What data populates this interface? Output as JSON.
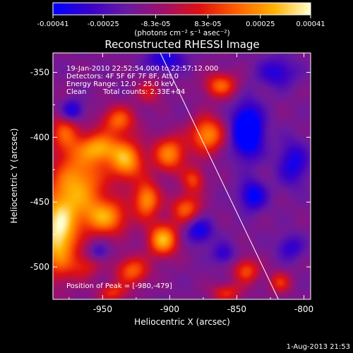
{
  "colorbar": {
    "tick_labels": [
      "-0.00041",
      "-0.00025",
      "-8.3e-05",
      "8.3e-05",
      "0.00025",
      "0.00041"
    ],
    "tick_values": [
      -0.00041,
      -0.00025,
      -8.3e-05,
      8.3e-05,
      0.00025,
      0.00041
    ],
    "range": [
      -0.00041,
      0.00041
    ],
    "units_label": "(photons cm⁻² s⁻¹ asec⁻²)",
    "colors": [
      "#0000ff",
      "#3a00c8",
      "#6a1aa0",
      "#a0106a",
      "#e01010",
      "#ff6000",
      "#ffb000",
      "#ffffd0"
    ]
  },
  "info": {
    "time_range": "19-Jan-2010 22:52:54.000 to 22:57:12.000",
    "detectors": "Detectors: 4F 5F 6F 7F 8F, Att 0",
    "energy": "Energy Range: 12.0 - 25.0 keV",
    "method": "Clean",
    "counts": "Total counts: 2.33E+04",
    "peak": "Position of Peak = [-980,-479]"
  },
  "footer": {
    "timestamp": "1-Aug-2013 21:53"
  },
  "chart_data": {
    "type": "heatmap",
    "title": "Reconstructed RHESSI Image",
    "xlabel": "Heliocentric X (arcsec)",
    "ylabel": "Heliocentric Y (arcsec)",
    "xlim": [
      -987,
      -795
    ],
    "ylim": [
      -525,
      -335
    ],
    "x_ticks": [
      -950,
      -900,
      -850,
      -800
    ],
    "x_tick_labels": [
      "-950",
      "-900",
      "-850",
      "-800"
    ],
    "y_ticks": [
      -350,
      -400,
      -450,
      -500
    ],
    "y_tick_labels": [
      "-350",
      "-400",
      "-450",
      "-500"
    ],
    "limb_line": [
      [
        -907,
        -335
      ],
      [
        -819,
        -525
      ]
    ],
    "peak": [
      -980,
      -479
    ],
    "blobs": [
      {
        "x": -983,
        "y": -475,
        "sx": 10,
        "sy": 22,
        "a": 1.0
      },
      {
        "x": -967,
        "y": -435,
        "sx": 14,
        "sy": 20,
        "a": 0.75
      },
      {
        "x": -978,
        "y": -395,
        "sx": 8,
        "sy": 12,
        "a": 0.5
      },
      {
        "x": -947,
        "y": -462,
        "sx": 12,
        "sy": 10,
        "a": 0.7
      },
      {
        "x": -932,
        "y": -418,
        "sx": 9,
        "sy": 11,
        "a": 0.8
      },
      {
        "x": -952,
        "y": -408,
        "sx": 10,
        "sy": 8,
        "a": 0.65
      },
      {
        "x": -938,
        "y": -387,
        "sx": 9,
        "sy": 8,
        "a": 0.6
      },
      {
        "x": -917,
        "y": -448,
        "sx": 7,
        "sy": 10,
        "a": 0.75
      },
      {
        "x": -905,
        "y": -479,
        "sx": 8,
        "sy": 9,
        "a": 0.85
      },
      {
        "x": -900,
        "y": -413,
        "sx": 9,
        "sy": 10,
        "a": 0.7
      },
      {
        "x": -888,
        "y": -455,
        "sx": 8,
        "sy": 8,
        "a": 0.6
      },
      {
        "x": -882,
        "y": -433,
        "sx": 6,
        "sy": 7,
        "a": 0.5
      },
      {
        "x": -872,
        "y": -398,
        "sx": 9,
        "sy": 10,
        "a": 0.75
      },
      {
        "x": -862,
        "y": -360,
        "sx": 9,
        "sy": 7,
        "a": 0.6
      },
      {
        "x": -928,
        "y": -503,
        "sx": 9,
        "sy": 8,
        "a": 0.6
      },
      {
        "x": -943,
        "y": -520,
        "sx": 8,
        "sy": 5,
        "a": 0.45
      },
      {
        "x": -843,
        "y": -503,
        "sx": 7,
        "sy": 7,
        "a": 0.55
      },
      {
        "x": -858,
        "y": -520,
        "sx": 8,
        "sy": 5,
        "a": 0.45
      },
      {
        "x": -818,
        "y": -512,
        "sx": 6,
        "sy": 6,
        "a": 0.45
      },
      {
        "x": -963,
        "y": -500,
        "sx": 8,
        "sy": 7,
        "a": 0.35
      },
      {
        "x": -915,
        "y": -365,
        "sx": 7,
        "sy": 7,
        "a": 0.35
      },
      {
        "x": -842,
        "y": -395,
        "sx": 8,
        "sy": 14,
        "a": -0.9
      },
      {
        "x": -838,
        "y": -445,
        "sx": 7,
        "sy": 8,
        "a": -0.55
      },
      {
        "x": -878,
        "y": -472,
        "sx": 7,
        "sy": 7,
        "a": -0.5
      },
      {
        "x": -808,
        "y": -420,
        "sx": 8,
        "sy": 12,
        "a": -0.45
      },
      {
        "x": -973,
        "y": -380,
        "sx": 6,
        "sy": 6,
        "a": -0.6
      },
      {
        "x": -903,
        "y": -340,
        "sx": 10,
        "sy": 6,
        "a": -0.45
      },
      {
        "x": -820,
        "y": -350,
        "sx": 10,
        "sy": 8,
        "a": -0.4
      },
      {
        "x": -860,
        "y": -490,
        "sx": 6,
        "sy": 6,
        "a": -0.35
      },
      {
        "x": -810,
        "y": -485,
        "sx": 7,
        "sy": 7,
        "a": -0.35
      },
      {
        "x": -953,
        "y": -488,
        "sx": 5,
        "sy": 5,
        "a": -0.3
      }
    ]
  }
}
